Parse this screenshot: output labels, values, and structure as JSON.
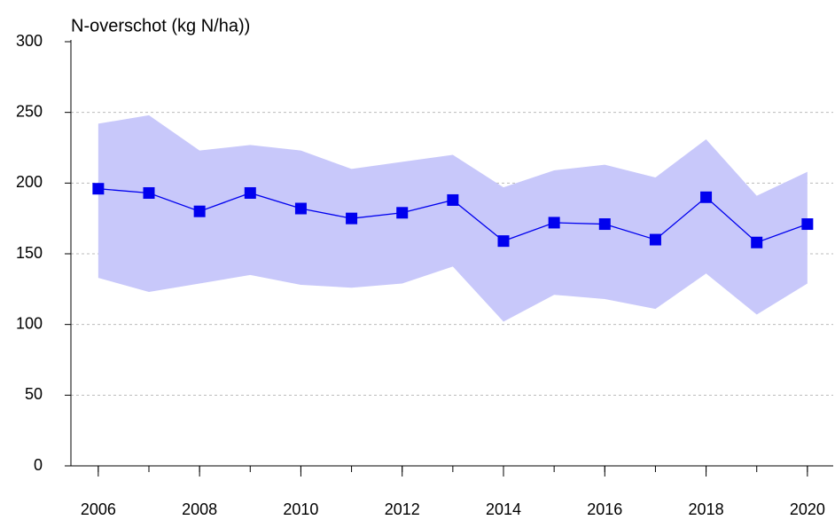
{
  "chart_data": {
    "type": "line",
    "title": "N-overschot (kg N/ha))",
    "x": [
      2006,
      2007,
      2008,
      2009,
      2010,
      2011,
      2012,
      2013,
      2014,
      2015,
      2016,
      2017,
      2018,
      2019,
      2020
    ],
    "series": [
      {
        "color": "#0000ee",
        "band_color": "#c8c8fa",
        "values": [
          196,
          193,
          180,
          193,
          182,
          175,
          179,
          188,
          159,
          172,
          171,
          160,
          190,
          158,
          171
        ],
        "upper": [
          242,
          248,
          223,
          227,
          223,
          210,
          215,
          220,
          197,
          209,
          213,
          204,
          231,
          191,
          208
        ],
        "lower": [
          133,
          123,
          129,
          135,
          128,
          126,
          129,
          141,
          102,
          121,
          118,
          111,
          136,
          107,
          129
        ]
      }
    ],
    "xlim": [
      2005.46,
      2020.51
    ],
    "xticks": [
      2006,
      2008,
      2010,
      2012,
      2014,
      2016,
      2018,
      2020
    ],
    "ylim": [
      0,
      300
    ],
    "yticks": [
      0,
      50,
      100,
      150,
      200,
      250,
      300
    ],
    "grid": true
  }
}
